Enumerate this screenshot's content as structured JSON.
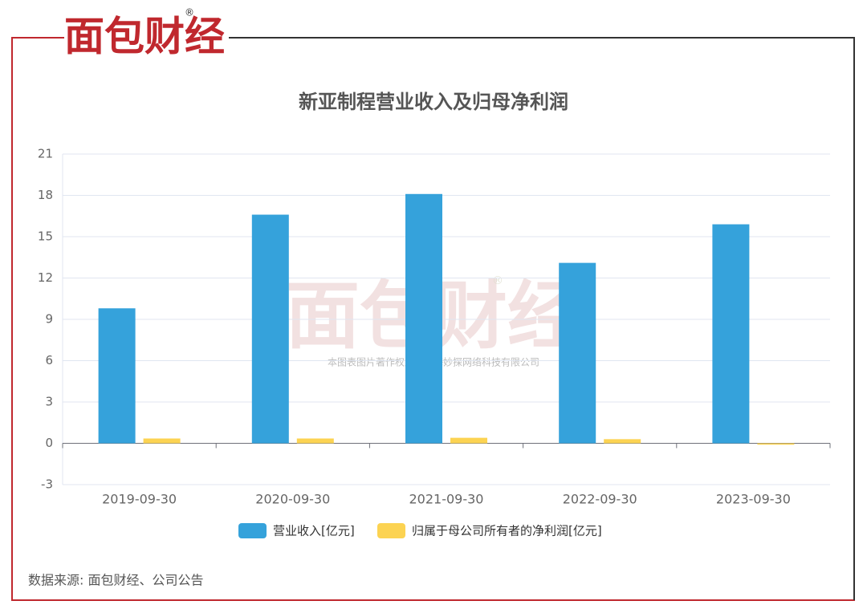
{
  "chart_data": {
    "type": "bar",
    "brand": "面包财经",
    "registered": "®",
    "title": "新亚制程营业收入及归母净利润",
    "watermark_note": "本图表图片著作权属于上海妙探网络科技有限公司",
    "source": "数据来源: 面包财经、公司公告",
    "categories": [
      "2019-09-30",
      "2020-09-30",
      "2021-09-30",
      "2022-09-30",
      "2023-09-30"
    ],
    "series": [
      {
        "name": "营业收入[亿元]",
        "color": "#35a2db",
        "values": [
          9.8,
          16.6,
          18.1,
          13.1,
          15.9
        ]
      },
      {
        "name": "归属于母公司所有者的净利润[亿元]",
        "color": "#fcd352",
        "values": [
          0.35,
          0.35,
          0.4,
          0.3,
          -0.1
        ]
      }
    ],
    "ylim": [
      -3,
      21
    ],
    "yticks": [
      -3,
      0,
      3,
      6,
      9,
      12,
      15,
      18,
      21
    ],
    "grid": true
  }
}
